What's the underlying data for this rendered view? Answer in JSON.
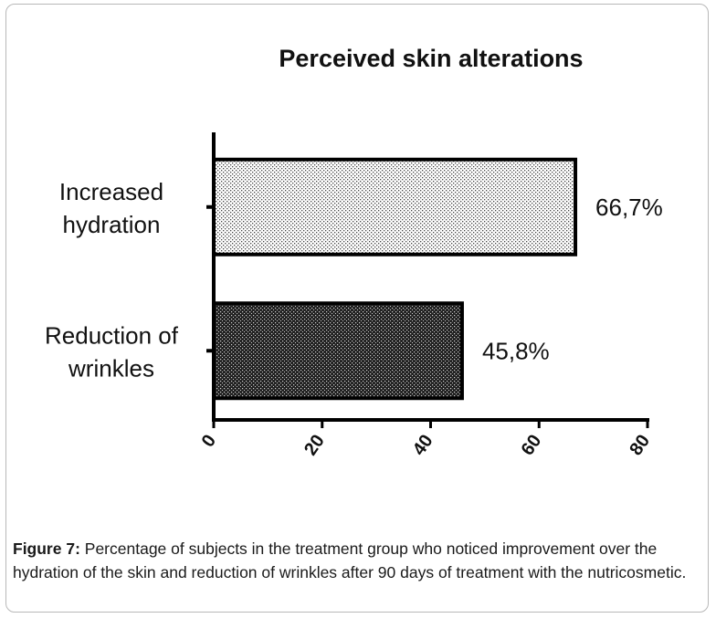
{
  "chart_data": {
    "type": "bar",
    "orientation": "horizontal",
    "title": "Perceived skin alterations",
    "xlabel": "",
    "ylabel": "",
    "xlim": [
      0,
      80
    ],
    "x_ticks": [
      "0",
      "20",
      "40",
      "60",
      "80"
    ],
    "categories": [
      [
        "Increased",
        "hydration"
      ],
      [
        "Reduction of",
        "wrinkles"
      ]
    ],
    "values": [
      66.7,
      45.8
    ],
    "value_labels": [
      "66,7%",
      "45,8%"
    ],
    "patterns": [
      "light-dots",
      "dark-dots"
    ],
    "grid": false,
    "legend": "none"
  },
  "caption": {
    "label": "Figure 7:",
    "text": "Percentage of subjects in the treatment group who noticed improvement over the hydration of the skin and reduction of wrinkles after 90 days of treatment with the nutricosmetic."
  }
}
